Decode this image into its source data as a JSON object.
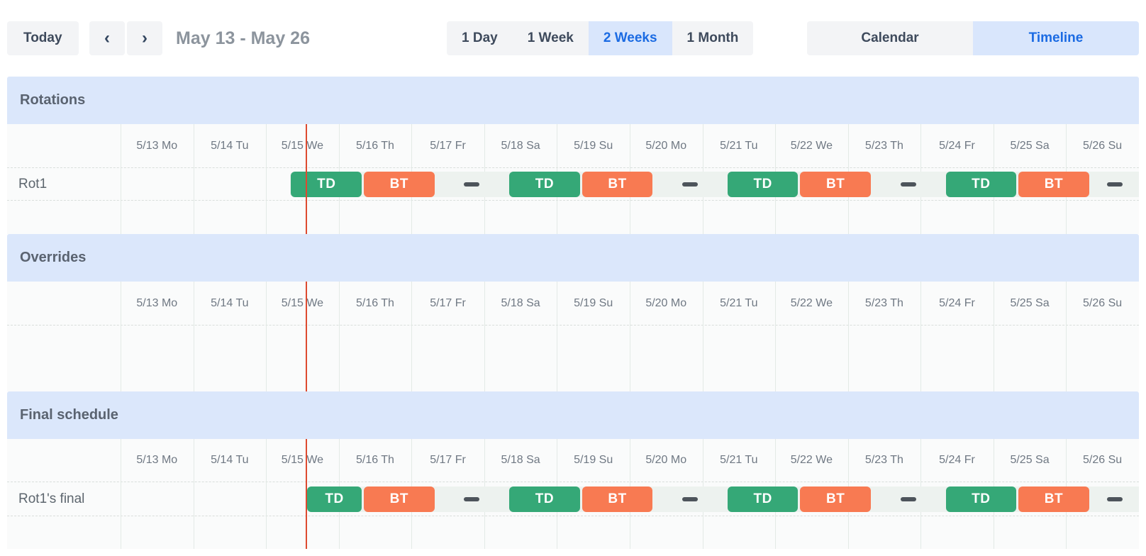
{
  "toolbar": {
    "today_label": "Today",
    "prev_icon": "‹",
    "next_icon": "›",
    "range_title": "May 13 - May 26",
    "views": [
      {
        "label": "1 Day",
        "selected": false
      },
      {
        "label": "1 Week",
        "selected": false
      },
      {
        "label": "2 Weeks",
        "selected": true
      },
      {
        "label": "1 Month",
        "selected": false
      }
    ],
    "modes": [
      {
        "label": "Calendar",
        "selected": false
      },
      {
        "label": "Timeline",
        "selected": true
      }
    ]
  },
  "colors": {
    "accent_blue": "#1b6be3",
    "accent_blue_bg": "#d9e6fc",
    "header_band": "#dbe7fb",
    "shift_td": "#35a877",
    "shift_bt": "#f87a52",
    "now_line": "#dd4a30",
    "strip_bg": "#edf2ef"
  },
  "timeline": {
    "days": [
      "5/13 Mo",
      "5/14 Tu",
      "5/15 We",
      "5/16 Th",
      "5/17 Fr",
      "5/18 Sa",
      "5/19 Su",
      "5/20 Mo",
      "5/21 Tu",
      "5/22 We",
      "5/23 Th",
      "5/24 Fr",
      "5/25 Sa",
      "5/26 Su"
    ],
    "now_indicator": {
      "day_fraction": 2.55
    },
    "segments": [
      {
        "type": "td",
        "label": "TD",
        "start_day": 2.33,
        "end_day": 3.33
      },
      {
        "type": "bt",
        "label": "BT",
        "start_day": 3.33,
        "end_day": 4.33
      },
      {
        "type": "off",
        "label": "",
        "start_day": 4.33,
        "end_day": 5.33
      },
      {
        "type": "td",
        "label": "TD",
        "start_day": 5.33,
        "end_day": 6.33
      },
      {
        "type": "bt",
        "label": "BT",
        "start_day": 6.33,
        "end_day": 7.33
      },
      {
        "type": "off",
        "label": "",
        "start_day": 7.33,
        "end_day": 8.33
      },
      {
        "type": "td",
        "label": "TD",
        "start_day": 8.33,
        "end_day": 9.33
      },
      {
        "type": "bt",
        "label": "BT",
        "start_day": 9.33,
        "end_day": 10.33
      },
      {
        "type": "off",
        "label": "",
        "start_day": 10.33,
        "end_day": 11.33
      },
      {
        "type": "td",
        "label": "TD",
        "start_day": 11.33,
        "end_day": 12.33
      },
      {
        "type": "bt",
        "label": "BT",
        "start_day": 12.33,
        "end_day": 13.33
      },
      {
        "type": "off",
        "label": "",
        "start_day": 13.33,
        "end_day": 14.33
      }
    ],
    "sections": [
      {
        "id": "rotations",
        "title": "Rotations",
        "rows": [
          {
            "label": "Rot1",
            "has_shifts": true,
            "clip_to_now": false
          }
        ]
      },
      {
        "id": "overrides",
        "title": "Overrides",
        "rows": []
      },
      {
        "id": "final",
        "title": "Final schedule",
        "rows": [
          {
            "label": "Rot1's final",
            "has_shifts": true,
            "clip_to_now": true
          }
        ]
      }
    ]
  }
}
